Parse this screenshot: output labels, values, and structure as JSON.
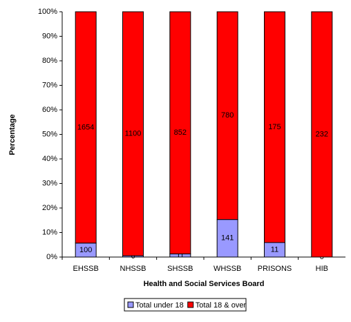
{
  "chart_data": {
    "type": "bar",
    "stacking": "percent",
    "x_label": "Health and Social Services Board",
    "y_label": "Percentage",
    "categories": [
      "EHSSB",
      "NHSSB",
      "SHSSB",
      "WHSSB",
      "PRISONS",
      "HIB"
    ],
    "series": [
      {
        "name": "Total under 18",
        "color": "#9999ff",
        "values": [
          100,
          6,
          11,
          141,
          11,
          0
        ]
      },
      {
        "name": "Total 18 & over",
        "color": "#ff0000",
        "values": [
          1654,
          1100,
          852,
          780,
          175,
          232
        ]
      }
    ],
    "ylim": [
      0,
      100
    ],
    "yticks": [
      {
        "value": 0,
        "label": "0%"
      },
      {
        "value": 10,
        "label": "10%"
      },
      {
        "value": 20,
        "label": "20%"
      },
      {
        "value": 30,
        "label": "30%"
      },
      {
        "value": 40,
        "label": "40%"
      },
      {
        "value": 50,
        "label": "50%"
      },
      {
        "value": 60,
        "label": "60%"
      },
      {
        "value": 70,
        "label": "70%"
      },
      {
        "value": 80,
        "label": "80%"
      },
      {
        "value": 90,
        "label": "90%"
      },
      {
        "value": 100,
        "label": "100%"
      }
    ],
    "legend": "bottom"
  }
}
